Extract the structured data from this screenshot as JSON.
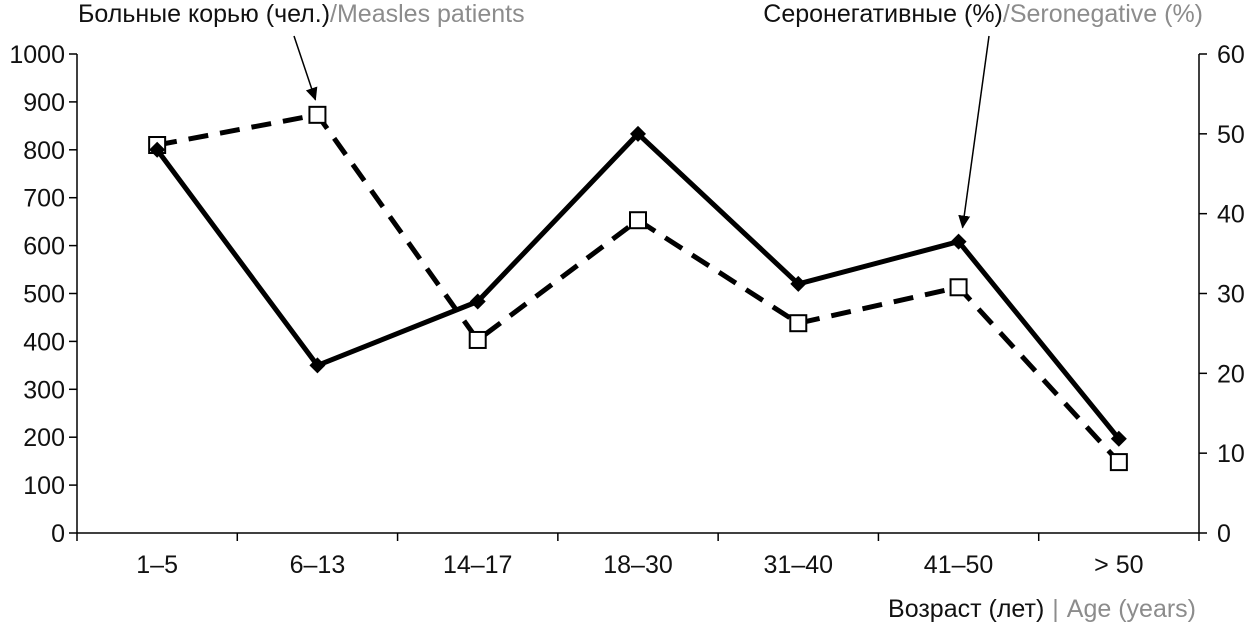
{
  "chart_data": {
    "type": "line",
    "categories": [
      "1–5",
      "6–13",
      "14–17",
      "18–30",
      "31–40",
      "41–50",
      "> 50"
    ],
    "xlabel": {
      "ru": "Возраст (лет)",
      "separator": "|",
      "en": "Age (years)"
    },
    "y_left": {
      "min": 0,
      "max": 1000,
      "step": 100,
      "ticks": [
        "0",
        "100",
        "200",
        "300",
        "400",
        "500",
        "600",
        "700",
        "800",
        "900",
        "1000"
      ]
    },
    "y_right": {
      "min": 0,
      "max": 60,
      "step": 10,
      "ticks": [
        "0",
        "10",
        "20",
        "30",
        "40",
        "50",
        "60"
      ]
    },
    "grid": false,
    "series": [
      {
        "name": "Больные корью (чел.)/Measles patients",
        "label_ru": "Больные корью (чел.)",
        "label_sep": "/",
        "label_en": "Measles patients",
        "axis": "left",
        "style": "dashed",
        "marker": "open-square",
        "color": "#000000",
        "values": [
          810,
          873,
          403,
          653,
          438,
          513,
          148
        ]
      },
      {
        "name": "Серонегативные (%)/Seronegative (%)",
        "label_ru": "Серонегативные (%)",
        "label_sep": "/",
        "label_en": "Seronegative (%)",
        "axis": "right",
        "style": "solid",
        "marker": "filled-diamond",
        "color": "#000000",
        "values": [
          48,
          21,
          29,
          50,
          31.2,
          36.5,
          11.8
        ]
      }
    ],
    "annotations": [
      {
        "series": 0,
        "points_to_index": 1,
        "text_ref": "series.0.name"
      },
      {
        "series": 1,
        "points_to_index": 5,
        "text_ref": "series.1.name"
      }
    ]
  },
  "colors": {
    "axis": "#000000",
    "text": "#111111",
    "english_text": "#8c8c8c"
  }
}
